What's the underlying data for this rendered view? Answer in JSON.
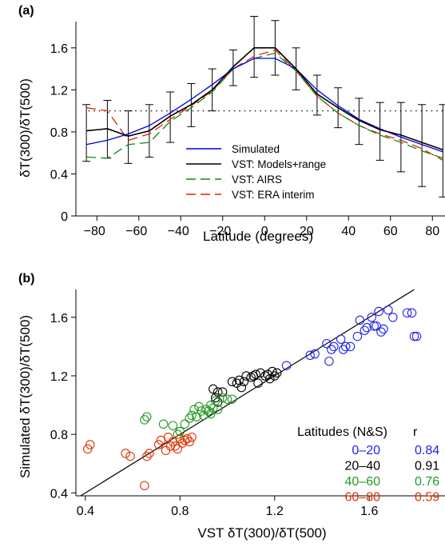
{
  "chart_data": [
    {
      "type": "line",
      "panel_label": "(a)",
      "xlabel": "Latitude (degrees)",
      "ylabel": "δT(300)/δT(500)",
      "xlim": [
        -90,
        86
      ],
      "ylim": [
        0,
        1.85
      ],
      "xticks": [
        -80,
        -60,
        -40,
        -20,
        0,
        20,
        40,
        60,
        80
      ],
      "yticks": [
        0,
        0.4,
        0.8,
        1.2,
        1.6
      ],
      "reference_line": 1.0,
      "legend_position": "bottom-center",
      "series": [
        {
          "name": "Simulated",
          "color": "#0000dd",
          "dash": "",
          "x": [
            -85,
            -75,
            -65,
            -55,
            -45,
            -35,
            -25,
            -15,
            -5,
            5,
            15,
            25,
            35,
            45,
            55,
            65,
            75,
            85
          ],
          "y": [
            0.68,
            0.72,
            0.78,
            0.86,
            0.98,
            1.11,
            1.25,
            1.4,
            1.5,
            1.5,
            1.4,
            1.2,
            1.05,
            0.92,
            0.83,
            0.75,
            0.68,
            0.61
          ]
        },
        {
          "name": "VST: Models+range",
          "color": "#000000",
          "dash": "",
          "x": [
            -85,
            -75,
            -65,
            -55,
            -45,
            -35,
            -25,
            -15,
            -5,
            5,
            15,
            25,
            35,
            45,
            55,
            65,
            75,
            85
          ],
          "y": [
            0.81,
            0.83,
            0.76,
            0.81,
            0.95,
            1.06,
            1.2,
            1.42,
            1.6,
            1.6,
            1.4,
            1.16,
            1.03,
            0.91,
            0.82,
            0.77,
            0.7,
            0.63
          ],
          "error_low": [
            0.52,
            0.55,
            0.5,
            0.56,
            0.7,
            0.85,
            1.0,
            1.24,
            1.32,
            1.34,
            1.2,
            0.96,
            0.84,
            0.68,
            0.53,
            0.42,
            0.28,
            0.18
          ],
          "error_high": [
            1.06,
            1.1,
            1.0,
            1.06,
            1.18,
            1.26,
            1.4,
            1.58,
            1.9,
            1.86,
            1.6,
            1.34,
            1.22,
            1.12,
            1.08,
            1.08,
            1.06,
            1.06
          ]
        },
        {
          "name": "VST: AIRS",
          "color": "#118811",
          "dash": "12 6",
          "x": [
            -85,
            -75,
            -65,
            -55,
            -45,
            -35,
            -25,
            -15,
            -5,
            5,
            15,
            25,
            35,
            45,
            55,
            65,
            75,
            85
          ],
          "y": [
            0.56,
            0.55,
            0.68,
            0.7,
            0.9,
            1.03,
            1.18,
            1.4,
            1.5,
            1.55,
            1.38,
            1.14,
            0.98,
            0.86,
            0.77,
            0.7,
            0.62,
            0.55
          ]
        },
        {
          "name": "VST: ERA interim",
          "color": "#dd2200",
          "dash": "12 6",
          "x": [
            -85,
            -75,
            -65,
            -55,
            -45,
            -35,
            -25,
            -15,
            -5,
            5,
            15,
            25,
            35,
            45,
            55,
            65,
            75,
            85
          ],
          "y": [
            1.03,
            1.0,
            0.72,
            0.78,
            0.92,
            1.05,
            1.19,
            1.4,
            1.52,
            1.58,
            1.38,
            1.14,
            0.98,
            0.86,
            0.78,
            0.72,
            0.64,
            0.53
          ]
        }
      ]
    },
    {
      "type": "scatter",
      "panel_label": "(b)",
      "xlabel": "VST δT(300)/δT(500)",
      "ylabel": "Simulated δT(300)/δT(500)",
      "xlim": [
        0.36,
        1.92
      ],
      "ylim": [
        0.38,
        1.79
      ],
      "xticks": [
        0.4,
        0.8,
        1.2,
        1.6
      ],
      "yticks": [
        0.4,
        0.8,
        1.2,
        1.6
      ],
      "one_to_one_line": true,
      "legend_title": "Latitudes (N&S)",
      "legend_r_header": "r",
      "legend_position": "bottom-right",
      "series": [
        {
          "name": "0–20",
          "r": "0.84",
          "color": "#2222ee",
          "x": [
            1.25,
            1.35,
            1.37,
            1.42,
            1.44,
            1.45,
            1.48,
            1.49,
            1.5,
            1.52,
            1.55,
            1.58,
            1.59,
            1.61,
            1.62,
            1.63,
            1.64,
            1.65,
            1.66,
            1.68,
            1.7,
            1.76,
            1.78,
            1.79,
            1.8,
            1.56,
            1.43
          ],
          "y": [
            1.27,
            1.34,
            1.35,
            1.42,
            1.38,
            1.4,
            1.45,
            1.38,
            1.4,
            1.4,
            1.47,
            1.51,
            1.53,
            1.6,
            1.54,
            1.54,
            1.64,
            1.5,
            1.52,
            1.65,
            1.6,
            1.63,
            1.63,
            1.47,
            1.47,
            1.58,
            1.3
          ]
        },
        {
          "name": "20–40",
          "r": "0.91",
          "color": "#000000",
          "x": [
            0.94,
            0.95,
            0.96,
            0.98,
            1.02,
            1.04,
            1.05,
            1.07,
            1.08,
            1.1,
            1.11,
            1.12,
            1.13,
            1.14,
            1.16,
            1.17,
            1.18,
            1.19,
            1.2,
            1.21,
            0.96,
            1.06
          ],
          "y": [
            1.11,
            1.05,
            1.09,
            1.09,
            1.16,
            1.15,
            1.17,
            1.16,
            1.2,
            1.19,
            1.2,
            1.21,
            1.15,
            1.22,
            1.2,
            1.21,
            1.18,
            1.23,
            1.2,
            1.22,
            1.02,
            1.12
          ]
        },
        {
          "name": "40–60",
          "r": "0.76",
          "color": "#229922",
          "x": [
            0.65,
            0.66,
            0.73,
            0.77,
            0.79,
            0.82,
            0.84,
            0.85,
            0.86,
            0.87,
            0.88,
            0.89,
            0.9,
            0.91,
            0.92,
            0.93,
            0.94,
            0.95,
            0.96,
            0.98,
            1.0,
            1.02,
            0.8,
            0.93
          ],
          "y": [
            0.9,
            0.92,
            0.87,
            0.86,
            0.8,
            0.87,
            0.91,
            0.93,
            0.97,
            0.92,
            0.99,
            0.96,
            0.93,
            0.97,
            0.96,
            0.94,
            0.98,
            1.03,
            0.97,
            1.05,
            1.04,
            1.04,
            0.82,
            1.0
          ]
        },
        {
          "name": "60–80",
          "r": "0.59",
          "color": "#dd3300",
          "x": [
            0.41,
            0.42,
            0.57,
            0.59,
            0.66,
            0.67,
            0.71,
            0.72,
            0.74,
            0.76,
            0.77,
            0.78,
            0.79,
            0.8,
            0.81,
            0.82,
            0.83,
            0.84,
            0.85,
            0.65,
            0.75
          ],
          "y": [
            0.7,
            0.73,
            0.67,
            0.65,
            0.65,
            0.67,
            0.73,
            0.76,
            0.69,
            0.72,
            0.75,
            0.72,
            0.7,
            0.77,
            0.74,
            0.76,
            0.77,
            0.75,
            0.78,
            0.45,
            0.78
          ]
        }
      ]
    }
  ]
}
